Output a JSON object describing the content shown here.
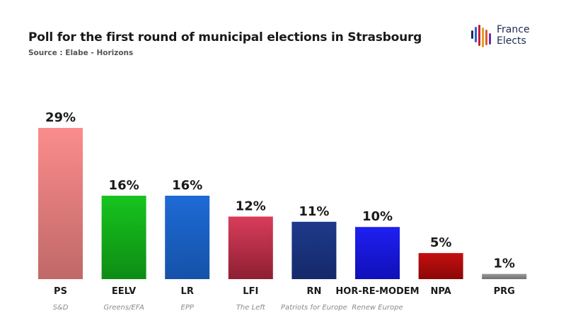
{
  "header": {
    "title": "Poll for the first round of municipal elections in Strasbourg",
    "subtitle": "Source : Elabe - Horizons"
  },
  "logo": {
    "line1": "France",
    "line2": "Elects",
    "stripe_colors": [
      "#1c2a55",
      "#2f5fd0",
      "#c81d3a",
      "#e0a020",
      "#e05a2a",
      "#6a2fb0"
    ]
  },
  "chart_data": {
    "type": "bar",
    "title": "Poll for the first round of municipal elections in Strasbourg",
    "subtitle": "Source : Elabe - Horizons",
    "categories": [
      "PS",
      "EELV",
      "LR",
      "LFI",
      "RN",
      "HOR-RE-MODEM",
      "NPA",
      "PRG"
    ],
    "groups": [
      "S&D",
      "Greens/EFA",
      "EPP",
      "The Left",
      "Patriots for Europe",
      "Renew Europe",
      "",
      ""
    ],
    "values": [
      29,
      16,
      16,
      12,
      11,
      10,
      5,
      1
    ],
    "labels": [
      "29%",
      "16%",
      "16%",
      "12%",
      "11%",
      "10%",
      "5%",
      "1%"
    ],
    "colors": [
      [
        "#fb8c8c",
        "#c06868"
      ],
      [
        "#16c41e",
        "#0e8c14"
      ],
      [
        "#1e6ad6",
        "#1552a8"
      ],
      [
        "#d83d5a",
        "#8e1f33"
      ],
      [
        "#1e3a8a",
        "#15296a"
      ],
      [
        "#1f1ff2",
        "#1010b8"
      ],
      [
        "#c50f0f",
        "#8a0707"
      ],
      [
        "#9a9a9a",
        "#6f6f6f"
      ]
    ],
    "ylim": [
      0,
      29
    ],
    "grid": false,
    "legend": "none"
  }
}
